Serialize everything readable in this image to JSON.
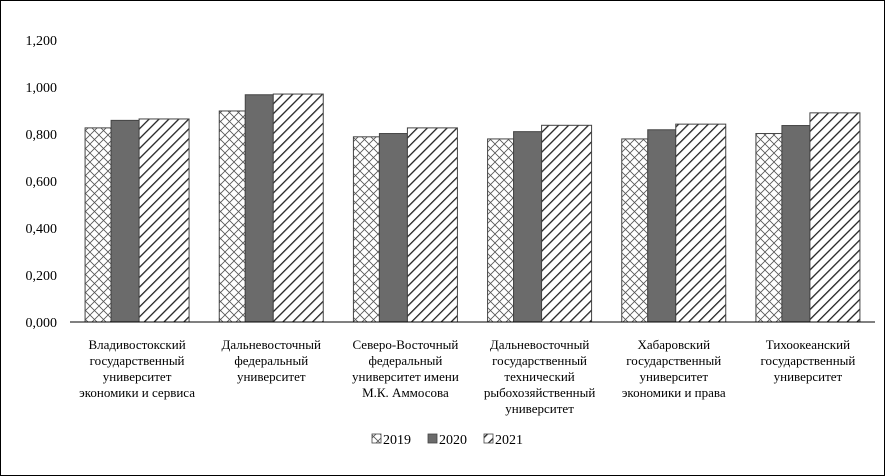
{
  "chart_data": {
    "type": "bar",
    "title": "",
    "xlabel": "",
    "ylabel": "",
    "ylim": [
      0,
      1.2
    ],
    "yticks": [
      "0,000",
      "0,200",
      "0,400",
      "0,600",
      "0,800",
      "1,000",
      "1,200"
    ],
    "categories": [
      [
        "Владивостокский",
        "государственный",
        "университет",
        "экономики и сервиса"
      ],
      [
        "Дальневосточный",
        "федеральный",
        "университет"
      ],
      [
        "Северо-Восточный",
        "федеральный",
        "университет имени",
        "М.К. Аммосова"
      ],
      [
        "Дальневосточный",
        "государственный",
        "технический",
        "рыбохозяйственный",
        "университет"
      ],
      [
        "Хабаровский",
        "государственный",
        "университет",
        "экономики и права"
      ],
      [
        "Тихоокеанский",
        "государственный",
        "университет"
      ]
    ],
    "series": [
      {
        "name": "2019",
        "values": [
          0.826,
          0.898,
          0.788,
          0.779,
          0.779,
          0.802
        ],
        "pattern": "crosshatch",
        "color": "#ffffff"
      },
      {
        "name": "2020",
        "values": [
          0.858,
          0.967,
          0.802,
          0.81,
          0.818,
          0.836
        ],
        "pattern": "solid",
        "color": "#6b6b6b"
      },
      {
        "name": "2021",
        "values": [
          0.864,
          0.97,
          0.826,
          0.837,
          0.842,
          0.89
        ],
        "pattern": "diagonal",
        "color": "#ffffff"
      }
    ],
    "grid": false,
    "legend": "bottom-center"
  }
}
